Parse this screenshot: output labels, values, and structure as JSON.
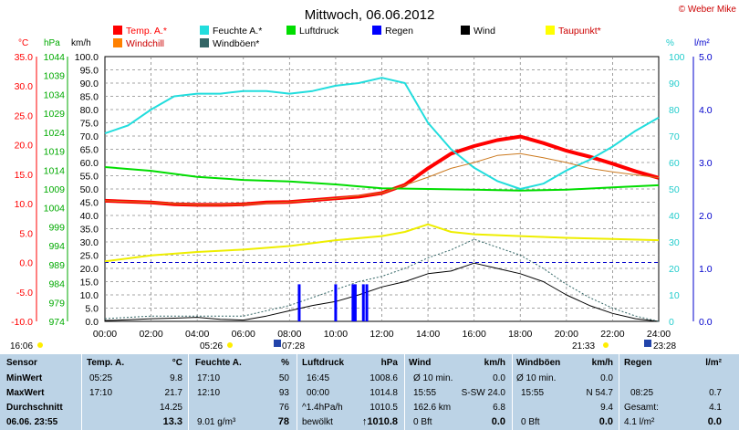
{
  "title": "Mittwoch, 06.06.2012",
  "credit": "© Weber Mike",
  "legend": [
    {
      "label": "Temp. A.*",
      "color": "#ff0000"
    },
    {
      "label": "Feuchte A.*",
      "color": "#22dddd"
    },
    {
      "label": "Luftdruck",
      "color": "#00dd00"
    },
    {
      "label": "Regen",
      "color": "#0000ff"
    },
    {
      "label": "Wind",
      "color": "#000000"
    },
    {
      "label": "Taupunkt*",
      "color": "#ffff00"
    },
    {
      "label": "Windchill",
      "color": "#ff8000"
    },
    {
      "label": "Windböen*",
      "color": "#336666"
    }
  ],
  "unit_labels": {
    "temp": "°C",
    "hpa": "hPa",
    "kmh": "km/h",
    "pct": "%",
    "rain": "l/m²"
  },
  "axis_temp": [
    "35.0",
    "30.0",
    "25.0",
    "20.0",
    "15.0",
    "10.0",
    "5.0",
    "0.0",
    "-5.0",
    "-10.0"
  ],
  "axis_hpa": [
    "1044",
    "1039",
    "1034",
    "1029",
    "1024",
    "1019",
    "1014",
    "1009",
    "1004",
    "999",
    "994",
    "989",
    "984",
    "979",
    "974"
  ],
  "axis_kmh": [
    "100.0",
    "95.0",
    "90.0",
    "85.0",
    "80.0",
    "75.0",
    "70.0",
    "65.0",
    "60.0",
    "55.0",
    "50.0",
    "45.0",
    "40.0",
    "35.0",
    "30.0",
    "25.0",
    "20.0",
    "15.0",
    "10.0",
    "5.0",
    "0.0"
  ],
  "axis_pct": [
    "100",
    "90",
    "80",
    "70",
    "60",
    "50",
    "40",
    "30",
    "20",
    "10",
    "0"
  ],
  "axis_rain": [
    "5.0",
    "4.0",
    "3.0",
    "2.0",
    "1.0",
    "0.0"
  ],
  "x_ticks": [
    "00:00",
    "02:00",
    "04:00",
    "06:00",
    "08:00",
    "10:00",
    "12:00",
    "14:00",
    "16:00",
    "18:00",
    "20:00",
    "22:00",
    "24:00"
  ],
  "sun_labels": {
    "sunrise_time": "05:26",
    "sunset_time": "21:33",
    "day_start": "16:06",
    "moonrise": "07:28",
    "moonset": "23:28"
  },
  "chart_data": {
    "type": "line",
    "title": "Mittwoch, 06.06.2012",
    "x_unit": "hours",
    "series": [
      {
        "name": "Temp. A.*",
        "axis": "°C",
        "x": [
          0,
          2,
          3,
          4,
          5,
          6,
          7,
          8,
          9,
          10,
          11,
          12,
          13,
          14,
          15,
          16,
          17,
          18,
          19,
          20,
          21,
          22,
          23,
          24
        ],
        "values": [
          10.5,
          10.2,
          9.9,
          9.8,
          9.8,
          9.9,
          10.2,
          10.3,
          10.6,
          10.9,
          11.2,
          11.8,
          13.2,
          16.0,
          18.5,
          19.8,
          20.8,
          21.4,
          20.3,
          19.0,
          18.0,
          16.8,
          15.5,
          14.4
        ]
      },
      {
        "name": "Feuchte A.*",
        "axis": "%",
        "x": [
          0,
          1,
          2,
          3,
          4,
          5,
          6,
          7,
          8,
          9,
          10,
          11,
          12,
          13,
          14,
          15,
          16,
          17,
          18,
          19,
          20,
          21,
          22,
          23,
          24
        ],
        "values": [
          71,
          74,
          80,
          85,
          86,
          86,
          87,
          87,
          86,
          87,
          89,
          90,
          92,
          90,
          75,
          65,
          58,
          53,
          50,
          52,
          57,
          61,
          66,
          72,
          77
        ]
      },
      {
        "name": "Luftdruck",
        "axis": "hPa",
        "x": [
          0,
          2,
          4,
          6,
          8,
          10,
          12,
          14,
          16,
          18,
          20,
          22,
          24
        ],
        "values": [
          1014.8,
          1013.8,
          1012.2,
          1011.4,
          1011.0,
          1010.2,
          1009.2,
          1009.0,
          1008.8,
          1008.6,
          1008.8,
          1009.4,
          1010.0
        ]
      },
      {
        "name": "Taupunkt*",
        "axis": "°C",
        "x": [
          0,
          2,
          4,
          6,
          8,
          10,
          12,
          13,
          14,
          15,
          16,
          18,
          20,
          22,
          24
        ],
        "values": [
          0.2,
          1.2,
          1.8,
          2.2,
          2.8,
          3.8,
          4.5,
          5.2,
          6.5,
          5.2,
          4.8,
          4.5,
          4.2,
          4.0,
          3.8
        ]
      },
      {
        "name": "Windchill",
        "axis": "°C",
        "x": [
          0,
          2,
          4,
          6,
          8,
          10,
          12,
          14,
          15,
          16,
          17,
          18,
          19,
          20,
          21,
          22,
          24
        ],
        "values": [
          10.5,
          10.2,
          9.8,
          9.9,
          10.3,
          10.9,
          11.8,
          14.5,
          16.0,
          17.0,
          18.2,
          18.5,
          17.8,
          17.0,
          16.0,
          15.4,
          14.4
        ]
      },
      {
        "name": "Wind",
        "axis": "km/h",
        "x": [
          0,
          1,
          2,
          3,
          4,
          5,
          6,
          7,
          8,
          9,
          10,
          11,
          12,
          13,
          14,
          15,
          16,
          17,
          18,
          19,
          20,
          21,
          22,
          23,
          24
        ],
        "values": [
          0.3,
          0.6,
          1.0,
          1.2,
          1.5,
          0.8,
          0.5,
          2.0,
          4.0,
          6.0,
          7.5,
          10.0,
          13.0,
          15.0,
          18.0,
          19.0,
          22.0,
          20.0,
          18.0,
          15.0,
          10.0,
          6.0,
          3.0,
          1.0,
          0
        ]
      },
      {
        "name": "Windböen*",
        "axis": "km/h",
        "x": [
          0,
          2,
          4,
          6,
          8,
          9,
          10,
          11,
          12,
          13,
          14,
          15,
          16,
          17,
          18,
          19,
          20,
          21,
          22,
          23,
          24
        ],
        "values": [
          1,
          2,
          2,
          2,
          6,
          9,
          12,
          15,
          17,
          20,
          24,
          27,
          31,
          28,
          25,
          20,
          14,
          9,
          5,
          2,
          0
        ]
      },
      {
        "name": "Regen",
        "axis": "l/m²",
        "type": "bar",
        "x": [
          8.42,
          10.0,
          10.75,
          10.85,
          11.2,
          11.35
        ],
        "values": [
          0.7,
          0.7,
          0.7,
          0.7,
          0.7,
          0.7
        ]
      }
    ],
    "reference_lines": [
      {
        "axis": "°C",
        "value": 0.0
      }
    ],
    "xlim": [
      0,
      24
    ],
    "ylim_temp": [
      -10,
      35
    ],
    "ylim_hpa": [
      974,
      1044
    ],
    "ylim_kmh": [
      0,
      100
    ],
    "ylim_pct": [
      0,
      100
    ],
    "ylim_rain": [
      0,
      5
    ],
    "grid": true
  },
  "stats": {
    "headers": {
      "sensor": "Sensor",
      "temp": "Temp. A.",
      "temp_unit": "°C",
      "hum": "Feuchte A.",
      "hum_unit": "%",
      "press": "Luftdruck",
      "press_unit": "hPa",
      "wind": "Wind",
      "wind_unit": "km/h",
      "gust": "Windböen",
      "gust_unit": "km/h",
      "rain": "Regen",
      "rain_unit": "l/m²"
    },
    "row_labels": {
      "min": "MinWert",
      "max": "MaxWert",
      "avg": "Durchschnitt",
      "now": "06.06. 23:55"
    },
    "temp": {
      "min_time": "05:25",
      "min": "9.8",
      "max_time": "17:10",
      "max": "21.7",
      "avg": "14.25",
      "now": "13.3"
    },
    "hum": {
      "min_time": "17:10",
      "min": "50",
      "max_time": "12:10",
      "max": "93",
      "avg": "76",
      "abs": "9.01 g/m³",
      "now": "78"
    },
    "press": {
      "min_time": "16:45",
      "min": "1008.6",
      "max_time": "00:00",
      "max": "1014.8",
      "trend": "^1.4hPa/h",
      "avg": "1010.5",
      "weather": "bewölkt",
      "now": "↑1010.8"
    },
    "wind": {
      "row1_label": "Ø 10 min.",
      "row1": "0.0",
      "row2_time": "15:55",
      "row2": "S-SW 24.0",
      "row3_label": "162.6 km",
      "row3": "6.8",
      "bft": "0 Bft",
      "now": "0.0"
    },
    "gust": {
      "row1_label": "Ø 10 min.",
      "row1": "0.0",
      "row2_time": "15:55",
      "row2": "N 54.7",
      "row3": "9.4",
      "bft": "0 Bft",
      "now": "0.0"
    },
    "rain": {
      "row2_time": "08:25",
      "row2": "0.7",
      "row3_label": "Gesamt:",
      "row3": "4.1",
      "now_label": "4.1 l/m²",
      "now": "0.0"
    }
  }
}
